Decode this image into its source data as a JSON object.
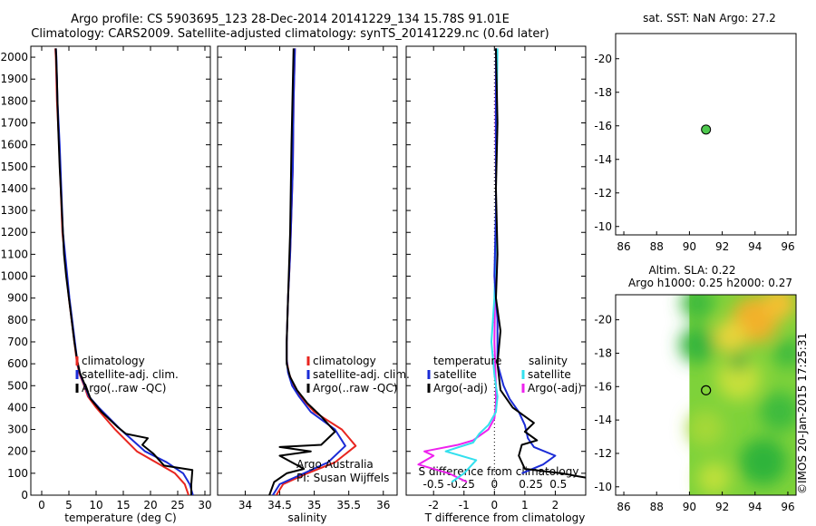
{
  "header": {
    "line1": "Argo profile: CS 5903695_123 28-Dec-2014 20141229_134 15.78S 91.01E",
    "line2": "Climatology: CARS2009. Satellite-adjusted climatology: synTS_20141229.nc (0.6d later)"
  },
  "credit": "©IMOS 20-Jan-2015 17:25:31",
  "colors": {
    "climatology": "#e8251f",
    "satellite": "#1a2bd6",
    "argo": "#000000",
    "satellite_sal": "#33e0ee",
    "argo_sal": "#ee22ee"
  },
  "chart_data": [
    {
      "id": "temp",
      "type": "line",
      "xlabel": "temperature (deg C)",
      "ylabel": "",
      "xlim": [
        -2,
        31
      ],
      "ylim": [
        2050,
        0
      ],
      "xticks": [
        0,
        5,
        10,
        15,
        20,
        25,
        30
      ],
      "yticks": [
        0,
        100,
        200,
        300,
        400,
        500,
        600,
        700,
        800,
        900,
        1000,
        1100,
        1200,
        1300,
        1400,
        1500,
        1600,
        1700,
        1800,
        1900,
        2000
      ],
      "legend": [
        {
          "label": "climatology",
          "color": "#e8251f"
        },
        {
          "label": "satellite-adj. clim.",
          "color": "#1a2bd6"
        },
        {
          "label": "Argo(..raw -QC)",
          "color": "#000000"
        }
      ],
      "series": [
        {
          "color": "#e8251f",
          "x": [
            27.0,
            26.3,
            24.5,
            21.0,
            17.5,
            13.5,
            10.0,
            8.5,
            7.8,
            7.0,
            6.5,
            6.0,
            5.5,
            5.0,
            4.6,
            4.2,
            3.8,
            3.5,
            3.2,
            3.0,
            2.8,
            2.6,
            2.5
          ],
          "y": [
            0,
            50,
            100,
            150,
            200,
            300,
            400,
            450,
            500,
            550,
            600,
            700,
            800,
            900,
            1000,
            1100,
            1200,
            1400,
            1600,
            1700,
            1800,
            2000,
            2040
          ]
        },
        {
          "color": "#1a2bd6",
          "x": [
            27.8,
            27.2,
            26.0,
            23.0,
            19.0,
            14.5,
            10.5,
            8.7,
            7.9,
            7.1,
            6.6,
            6.1,
            5.6,
            5.1,
            4.7,
            4.3,
            3.9,
            3.6,
            3.3,
            3.1,
            2.9,
            2.7,
            2.6
          ],
          "y": [
            0,
            50,
            100,
            150,
            200,
            300,
            400,
            450,
            500,
            550,
            600,
            700,
            800,
            900,
            1000,
            1100,
            1200,
            1400,
            1600,
            1700,
            1800,
            2000,
            2040
          ]
        },
        {
          "color": "#000000",
          "x": [
            27.5,
            27.5,
            27.7,
            22.5,
            20.5,
            18.5,
            19.5,
            15.5,
            14.0,
            11.0,
            9.0,
            8.0,
            7.0,
            6.5,
            6.0,
            5.5,
            5.0,
            4.5,
            4.1,
            3.7,
            3.3,
            3.0,
            2.8,
            2.6
          ],
          "y": [
            0,
            50,
            115,
            135,
            190,
            230,
            260,
            280,
            310,
            380,
            440,
            500,
            560,
            620,
            700,
            800,
            900,
            1000,
            1100,
            1300,
            1500,
            1700,
            1900,
            2040
          ]
        }
      ]
    },
    {
      "id": "sal",
      "type": "line",
      "xlabel": "salinity",
      "ylabel": "",
      "xlim": [
        33.6,
        36.2
      ],
      "ylim": [
        2050,
        0
      ],
      "xticks": [
        34,
        34.5,
        35,
        35.5,
        36
      ],
      "legend": [
        {
          "label": "climatology",
          "color": "#e8251f"
        },
        {
          "label": "satellite-adj. clim.",
          "color": "#1a2bd6"
        },
        {
          "label": "Argo(..raw -QC)",
          "color": "#000000"
        }
      ],
      "notes": [
        "Argo Australia",
        "PI: Susan Wijffels"
      ],
      "series": [
        {
          "color": "#e8251f",
          "x": [
            34.45,
            34.55,
            34.9,
            35.3,
            35.6,
            35.4,
            35.0,
            34.8,
            34.7,
            34.63,
            34.6,
            34.6,
            34.62,
            34.65,
            34.67,
            34.69,
            34.7,
            34.72
          ],
          "y": [
            0,
            50,
            100,
            150,
            225,
            300,
            380,
            450,
            500,
            560,
            620,
            700,
            900,
            1100,
            1300,
            1500,
            1800,
            2040
          ]
        },
        {
          "color": "#1a2bd6",
          "x": [
            34.4,
            34.5,
            34.85,
            35.2,
            35.45,
            35.3,
            34.95,
            34.78,
            34.68,
            34.62,
            34.6,
            34.6,
            34.62,
            34.65,
            34.67,
            34.69,
            34.7,
            34.72
          ],
          "y": [
            0,
            50,
            100,
            150,
            225,
            300,
            380,
            450,
            500,
            560,
            620,
            700,
            900,
            1100,
            1300,
            1500,
            1800,
            2040
          ]
        },
        {
          "color": "#000000",
          "x": [
            34.35,
            34.42,
            34.6,
            34.85,
            34.5,
            34.95,
            34.5,
            35.1,
            35.3,
            35.1,
            34.9,
            34.75,
            34.65,
            34.6,
            34.6,
            34.62,
            34.65,
            34.67,
            34.7
          ],
          "y": [
            0,
            60,
            100,
            120,
            180,
            200,
            220,
            230,
            290,
            360,
            420,
            480,
            540,
            600,
            700,
            900,
            1200,
            1600,
            2040
          ]
        }
      ]
    },
    {
      "id": "diff",
      "type": "line",
      "xlabel": "T difference from climatology",
      "xlabel2": "S difference from climatology",
      "xlim": [
        -2.9,
        3
      ],
      "ylim": [
        2050,
        0
      ],
      "xticks": [
        -2,
        -1,
        0,
        1,
        2
      ],
      "xticks_top": [
        "-0.5",
        "-0.25",
        "0",
        "0.25",
        "0.5"
      ],
      "legend_left": {
        "title": "temperature",
        "items": [
          {
            "label": "satellite",
            "color": "#1a2bd6"
          },
          {
            "label": "Argo(-adj)",
            "color": "#000000"
          }
        ]
      },
      "legend_right": {
        "title": "salinity",
        "items": [
          {
            "label": "satellite",
            "color": "#33e0ee"
          },
          {
            "label": "Argo(-adj)",
            "color": "#ee22ee"
          }
        ]
      },
      "series": [
        {
          "color": "#ee22ee",
          "x": [
            -0.9,
            -1.5,
            -2.5,
            -2.0,
            -2.3,
            -1.2,
            -0.7,
            -0.2,
            0.0,
            0.05,
            0.05,
            0.0,
            0.02,
            0.05,
            0.05,
            0.04,
            0.05
          ],
          "y": [
            60,
            100,
            140,
            180,
            200,
            230,
            250,
            300,
            350,
            420,
            500,
            700,
            900,
            1100,
            1400,
            1700,
            2040
          ]
        },
        {
          "color": "#33e0ee",
          "x": [
            -1.4,
            -1.0,
            -0.6,
            -1.6,
            -0.7,
            -0.5,
            -0.2,
            0.05,
            0.1,
            0.0,
            -0.1,
            0.0,
            0.05,
            0.05,
            0.08,
            0.1
          ],
          "y": [
            60,
            100,
            160,
            200,
            240,
            280,
            320,
            380,
            450,
            550,
            700,
            900,
            1200,
            1500,
            1800,
            2040
          ]
        },
        {
          "color": "#1a2bd6",
          "x": [
            0.9,
            1.6,
            2.0,
            1.3,
            1.1,
            1.0,
            0.8,
            0.5,
            0.3,
            0.1,
            0.1,
            0.0,
            0.05,
            0.05,
            0.05
          ],
          "y": [
            100,
            140,
            180,
            220,
            260,
            320,
            380,
            440,
            500,
            600,
            800,
            1000,
            1300,
            1700,
            2040
          ]
        },
        {
          "color": "#000000",
          "x": [
            3.0,
            2.2,
            1.0,
            0.8,
            0.9,
            1.4,
            1.0,
            1.3,
            0.6,
            0.2,
            0.1,
            0.2,
            0.05,
            0.1,
            0.05,
            0.1,
            0.05
          ],
          "y": [
            80,
            100,
            120,
            180,
            230,
            250,
            290,
            330,
            400,
            480,
            600,
            750,
            900,
            1100,
            1400,
            1700,
            2040
          ]
        }
      ]
    },
    {
      "id": "sst",
      "type": "scatter",
      "title": "sat. SST: NaN Argo: 27.2",
      "xlim": [
        85.5,
        96.5
      ],
      "ylim": [
        -21.5,
        -9.5
      ],
      "xticks": [
        86,
        88,
        90,
        92,
        94,
        96
      ],
      "yticks": [
        -10,
        -12,
        -14,
        -16,
        -18,
        -20
      ],
      "points": [
        {
          "x": 91.01,
          "y": -15.78,
          "color": "#4ec84e"
        }
      ]
    },
    {
      "id": "sla",
      "type": "heatmap",
      "title1": "Altim. SLA: 0.22",
      "title2": "Argo h1000: 0.25 h2000: 0.27",
      "xlim": [
        85.5,
        96.5
      ],
      "ylim": [
        -21.5,
        -9.5
      ],
      "xticks": [
        86,
        88,
        90,
        92,
        94,
        96
      ],
      "yticks": [
        -10,
        -12,
        -14,
        -16,
        -18,
        -20
      ],
      "points": [
        {
          "x": 91.01,
          "y": -15.78
        }
      ]
    }
  ]
}
